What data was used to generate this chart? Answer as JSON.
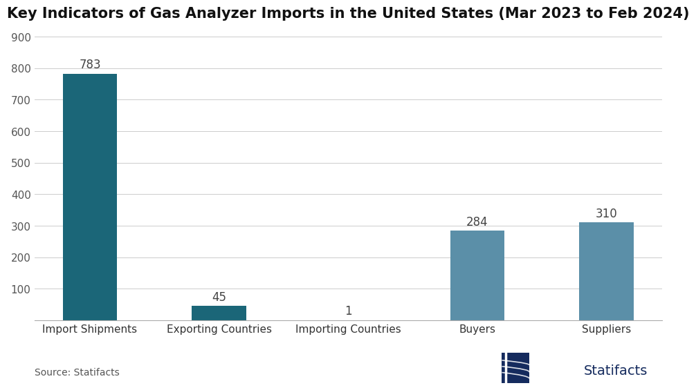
{
  "title": "Key Indicators of Gas Analyzer Imports in the United States (Mar 2023 to Feb 2024)",
  "categories": [
    "Import Shipments",
    "Exporting Countries",
    "Importing Countries",
    "Buyers",
    "Suppliers"
  ],
  "values": [
    783,
    45,
    1,
    284,
    310
  ],
  "bar_colors": [
    "#1b6678",
    "#1b6678",
    "#1b6678",
    "#5b8fa8",
    "#5b8fa8"
  ],
  "ylim": [
    0,
    900
  ],
  "yticks": [
    0,
    100,
    200,
    300,
    400,
    500,
    600,
    700,
    800,
    900
  ],
  "source_text": "Source: Statifacts",
  "logo_text": "Statifacts",
  "background_color": "#ffffff",
  "title_fontsize": 15,
  "tick_fontsize": 11,
  "label_fontsize": 11,
  "value_fontsize": 12,
  "source_fontsize": 10,
  "logo_fontsize": 14,
  "logo_color": "#152b5e"
}
